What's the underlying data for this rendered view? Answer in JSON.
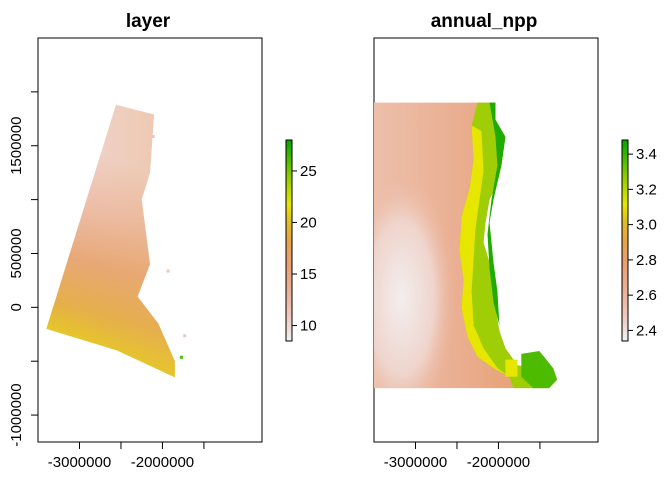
{
  "chart_data": [
    {
      "type": "heatmap",
      "title": "layer",
      "xlabel": "",
      "ylabel": "",
      "x_ticks": [
        "-3000000",
        "-2000000"
      ],
      "y_ticks": [
        "-1000000",
        "0",
        "500000",
        "1500000"
      ],
      "xlim": [
        -3500000,
        -800000
      ],
      "ylim": [
        -1250000,
        2500000
      ],
      "legend": {
        "placement": "right",
        "range": [
          8.5,
          28
        ],
        "ticks": [
          "10",
          "15",
          "20",
          "25"
        ]
      },
      "colormap": [
        "#f2f2f2",
        "#f0c9c0",
        "#ebb098",
        "#e8a072",
        "#e5a545",
        "#e0c020",
        "#e6e600",
        "#9bd000",
        "#4dbb00",
        "#00a600"
      ],
      "region_polygon": [
        [
          -2560000,
          1880000
        ],
        [
          -2100000,
          1790000
        ],
        [
          -2150000,
          1250000
        ],
        [
          -2250000,
          1000000
        ],
        [
          -2200000,
          700000
        ],
        [
          -2150000,
          400000
        ],
        [
          -2300000,
          100000
        ],
        [
          -2050000,
          -150000
        ],
        [
          -1850000,
          -500000
        ],
        [
          -1850000,
          -650000
        ],
        [
          -2550000,
          -400000
        ],
        [
          -3400000,
          -200000
        ]
      ],
      "value_stops": [
        {
          "point": [
            -2560000,
            1880000
          ],
          "value": 9.0
        },
        {
          "point": [
            -2100000,
            1400000
          ],
          "value": 10.5
        },
        {
          "point": [
            -2500000,
            900000
          ],
          "value": 14.0
        },
        {
          "point": [
            -2700000,
            350000
          ],
          "value": 16.0
        },
        {
          "point": [
            -3400000,
            -200000
          ],
          "value": 21.0
        },
        {
          "point": [
            -1900000,
            -550000
          ],
          "value": 16.5
        }
      ]
    },
    {
      "type": "heatmap",
      "title": "annual_npp",
      "xlabel": "",
      "ylabel": "",
      "x_ticks": [
        "-3000000",
        "-2000000"
      ],
      "xlim": [
        -3500000,
        -800000
      ],
      "ylim": [
        -1250000,
        2500000
      ],
      "legend": {
        "placement": "right",
        "range": [
          2.34,
          3.48
        ],
        "ticks": [
          "2.4",
          "2.6",
          "2.8",
          "3.0",
          "3.2",
          "3.4"
        ]
      },
      "colormap": [
        "#f2f2f2",
        "#f0c9c0",
        "#ebb098",
        "#e8a072",
        "#e5a545",
        "#e0c020",
        "#e6e600",
        "#9bd000",
        "#4dbb00",
        "#00a600"
      ],
      "extent": {
        "x": [
          -3500000,
          -1100000
        ],
        "y": [
          -750000,
          1900000
        ]
      },
      "note_values": {
        "interior_min": 2.36,
        "west_band": 2.55,
        "coast_max": 3.46
      }
    }
  ]
}
